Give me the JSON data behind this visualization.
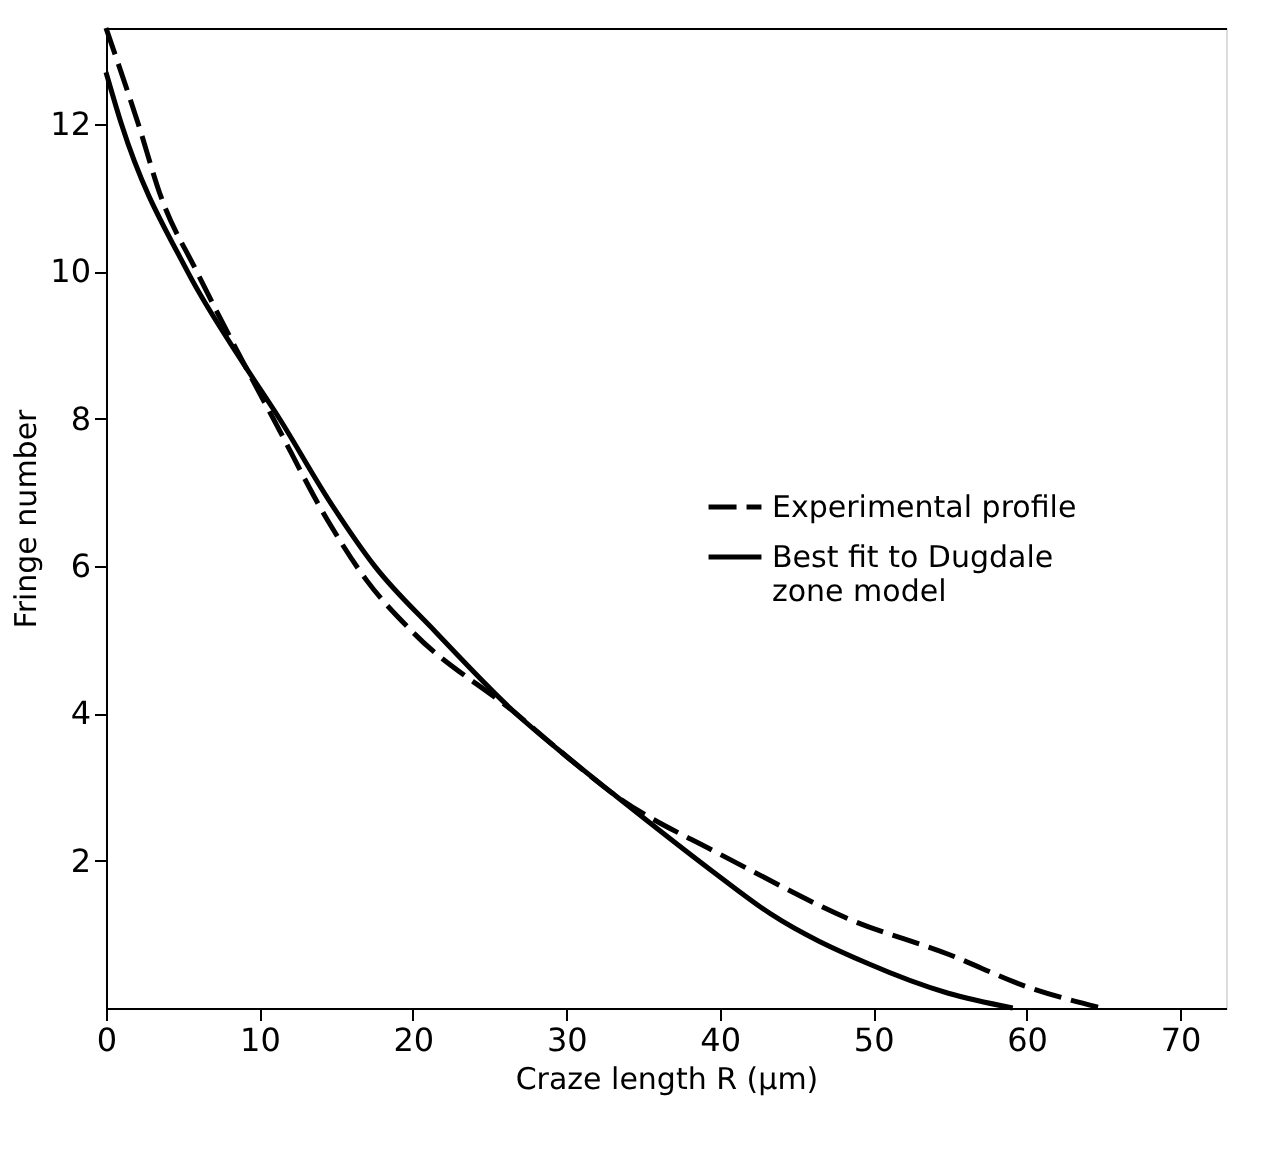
{
  "chart_data": {
    "type": "line",
    "xlabel": "Craze length R (µm)",
    "ylabel": "Fringe number",
    "xlim": [
      0,
      73
    ],
    "xticks": [
      0,
      10,
      20,
      30,
      40,
      50,
      60,
      70
    ],
    "ylim": [
      0,
      13.3
    ],
    "yticks": [
      2,
      4,
      6,
      8,
      10,
      12
    ],
    "grid": false,
    "legend": "right",
    "marker": "none",
    "series": [
      {
        "name": "Experimental profile",
        "color": "#000000",
        "line_style": "dashed",
        "x": [
          0,
          2.1,
          3.6,
          5.9,
          9.1,
          10.9,
          14.5,
          17,
          20,
          26.7,
          30.1,
          33.1,
          39.9,
          42.1,
          48.5,
          54.9,
          60,
          64.9
        ],
        "values": [
          13.3,
          12,
          11,
          10,
          8.7,
          8,
          6.6,
          5.8,
          5.1,
          4,
          3.4,
          2.9,
          2.1,
          1.86,
          1.2,
          0.73,
          0.29,
          0
        ]
      },
      {
        "name": "Best fit to Dugdale zone model",
        "color": "#000000",
        "line_style": "solid",
        "x": [
          0,
          1,
          5.3,
          9.1,
          11.3,
          14.5,
          17.5,
          21.5,
          26.7,
          30.1,
          33.1,
          39.5,
          43.3,
          49.7,
          54.9,
          59.1
        ],
        "values": [
          12.7,
          12,
          10,
          8.7,
          8,
          6.9,
          6,
          5.1,
          4,
          3.4,
          2.9,
          1.86,
          1.28,
          0.6,
          0.2,
          0
        ]
      }
    ]
  }
}
